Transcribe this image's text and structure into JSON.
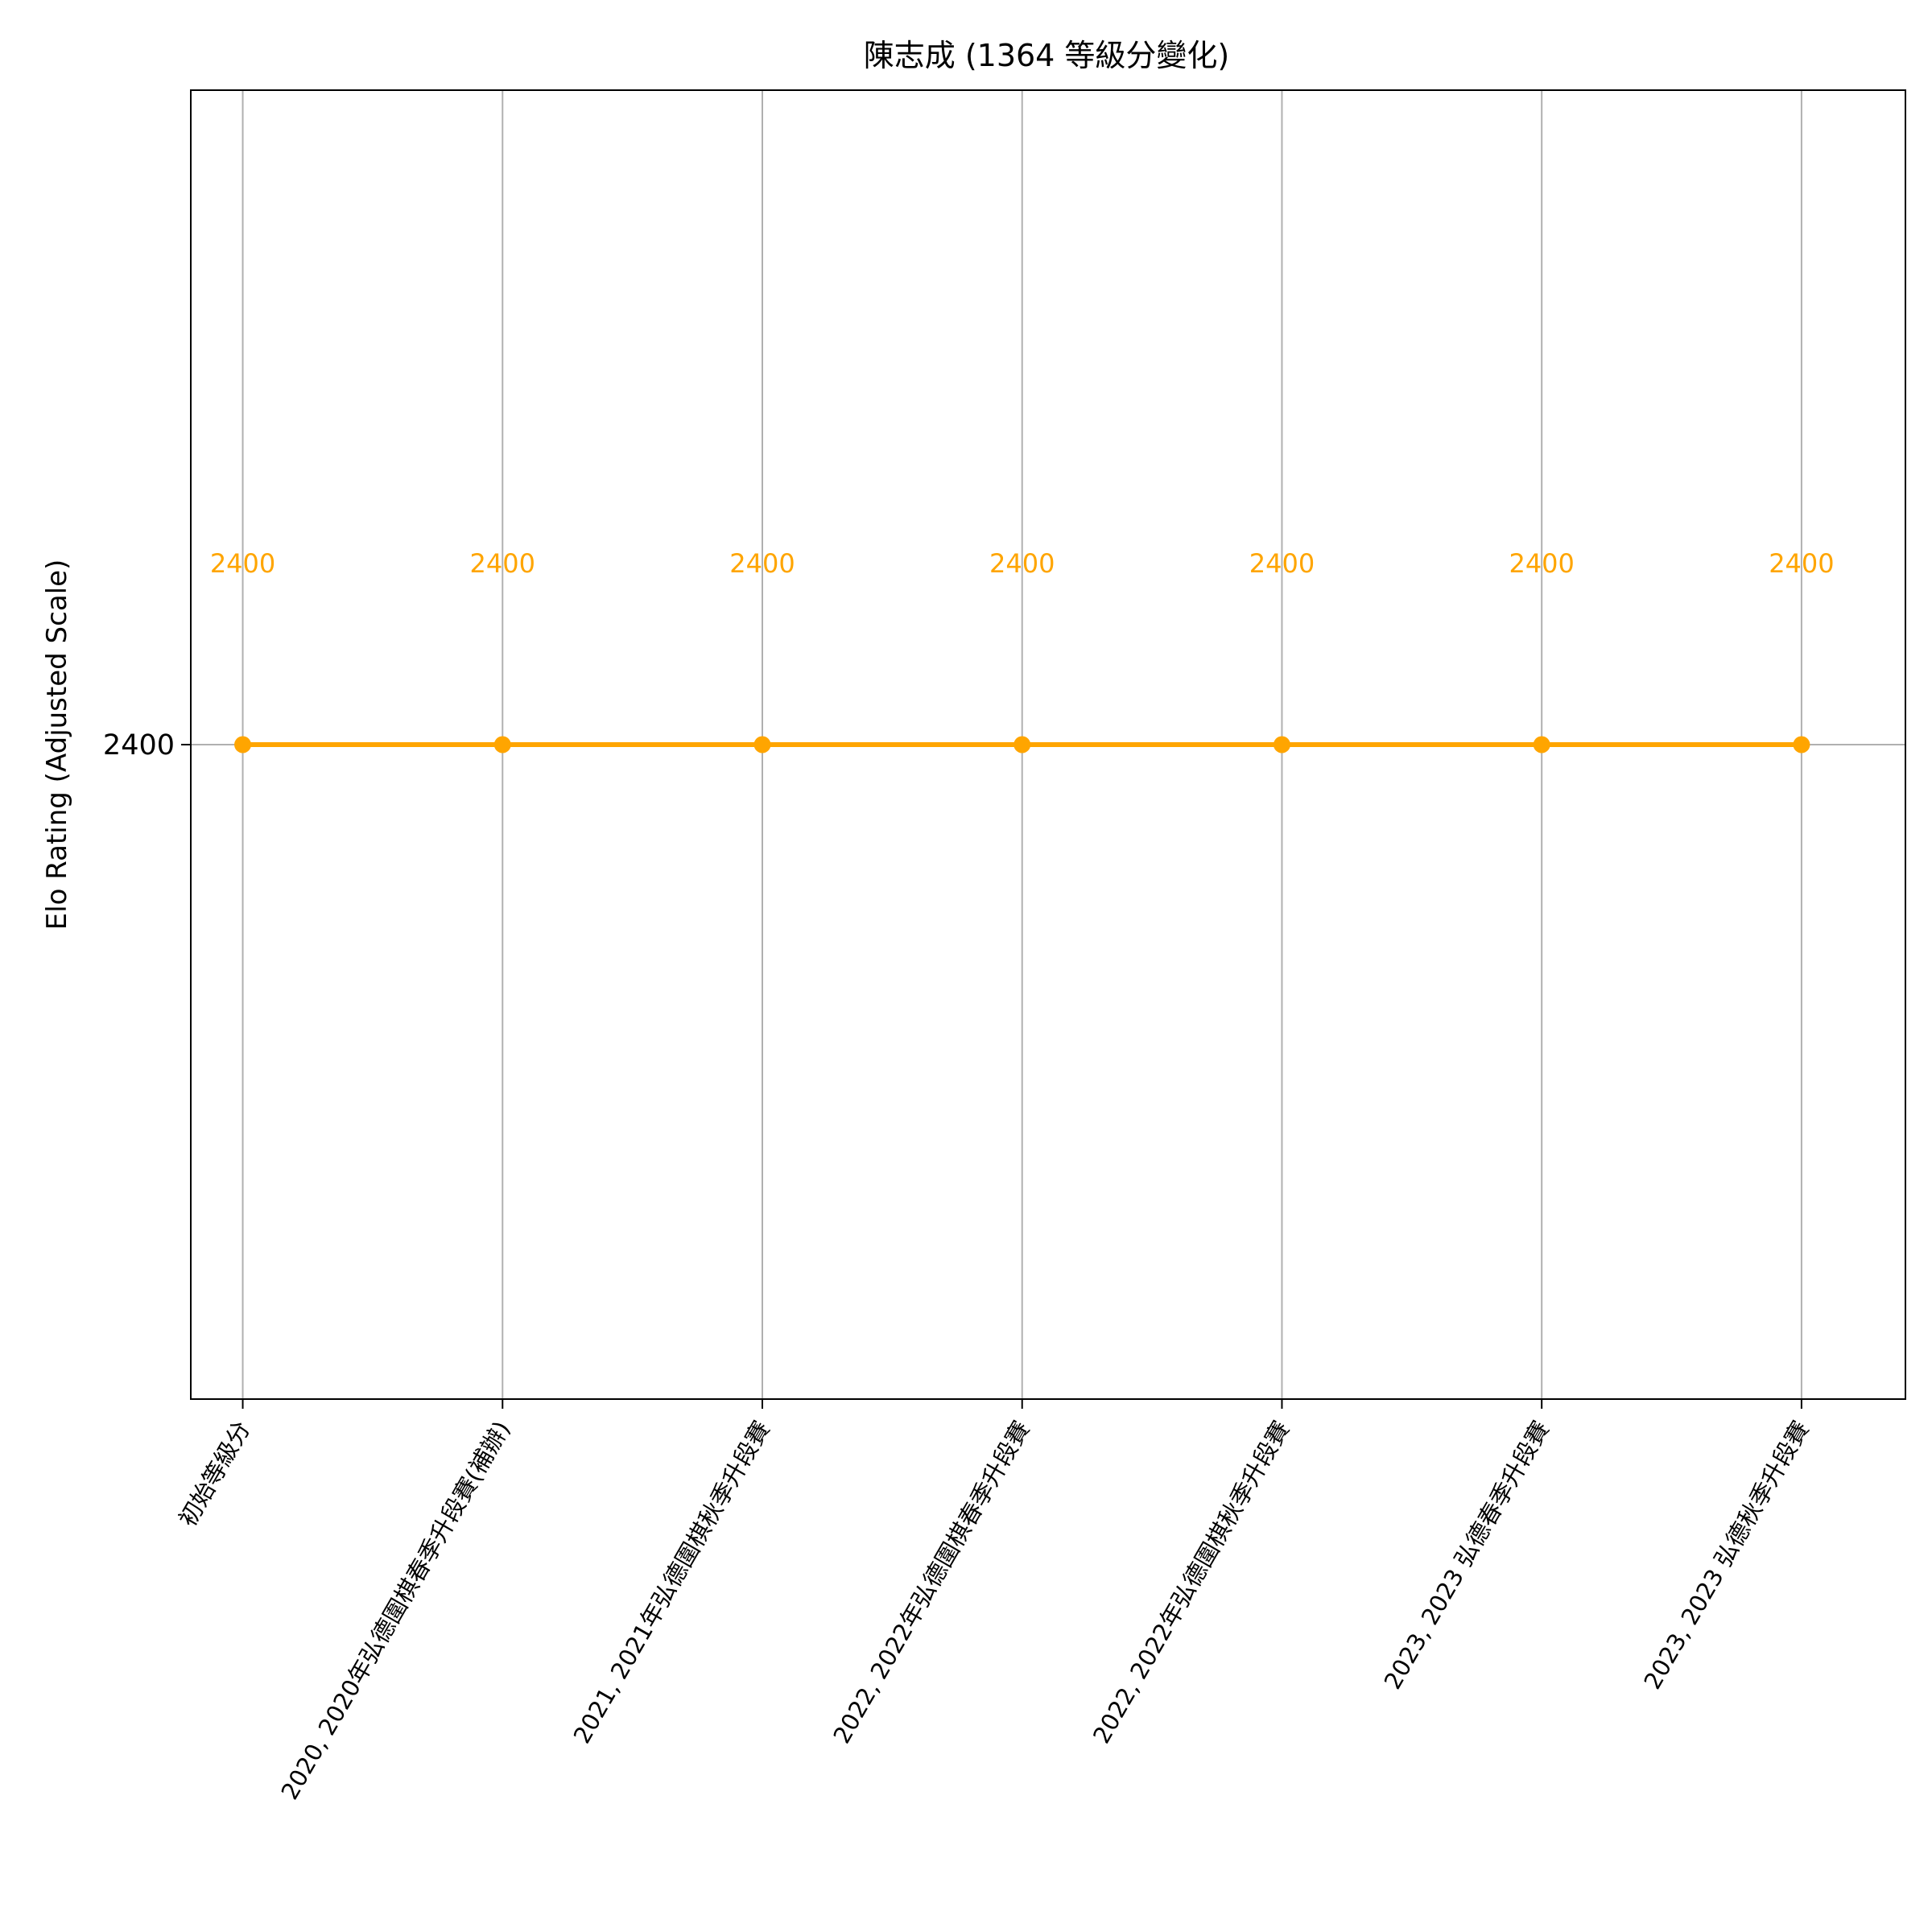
{
  "chart_data": {
    "type": "line",
    "title": "陳志成 (1364 等級分變化)",
    "xlabel": "",
    "ylabel": "Elo Rating (Adjusted Scale)",
    "categories": [
      "初始等級分",
      "2020, 2020年弘德圍棋春季升段賽(補辦)",
      "2021, 2021年弘德圍棋秋季升段賽",
      "2022, 2022年弘德圍棋春季升段賽",
      "2022, 2022年弘德圍棋秋季升段賽",
      "2023, 2023 弘德春季升段賽",
      "2023, 2023 弘德秋季升段賽"
    ],
    "values": [
      2400,
      2400,
      2400,
      2400,
      2400,
      2400,
      2400
    ],
    "data_labels": [
      "2400",
      "2400",
      "2400",
      "2400",
      "2400",
      "2400",
      "2400"
    ],
    "yticks": [
      2400
    ],
    "ytick_labels": [
      "2400"
    ],
    "ylim": [
      2398.8,
      2401.2
    ],
    "grid": true,
    "color": "#FFA500",
    "grid_color": "#B0B0B0",
    "marker": "circle"
  }
}
